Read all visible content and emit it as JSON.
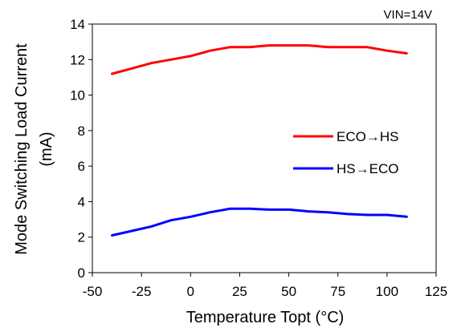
{
  "chart_data": {
    "type": "line",
    "annotation": "VIN=14V",
    "xlabel": "Temperature Topt (°C)",
    "ylabel": "Mode Switching Load Current",
    "ylabel_unit": "(mA)",
    "xlim": [
      -50,
      125
    ],
    "ylim": [
      0,
      14
    ],
    "x_ticks": [
      -50,
      -25,
      0,
      25,
      50,
      75,
      100,
      125
    ],
    "y_ticks": [
      0,
      2,
      4,
      6,
      8,
      10,
      12,
      14
    ],
    "grid": false,
    "legend_position": "right",
    "series": [
      {
        "name": "ECO→HS",
        "color": "#ff0000",
        "x": [
          -40,
          -30,
          -20,
          -10,
          0,
          10,
          20,
          30,
          40,
          50,
          60,
          70,
          80,
          90,
          100,
          110
        ],
        "y": [
          11.2,
          11.5,
          11.8,
          12.0,
          12.2,
          12.5,
          12.7,
          12.7,
          12.8,
          12.8,
          12.8,
          12.7,
          12.7,
          12.7,
          12.5,
          12.35
        ]
      },
      {
        "name": "HS→ECO",
        "color": "#0000ff",
        "x": [
          -40,
          -30,
          -20,
          -10,
          0,
          10,
          20,
          30,
          40,
          50,
          60,
          70,
          80,
          90,
          100,
          110
        ],
        "y": [
          2.1,
          2.35,
          2.6,
          2.95,
          3.15,
          3.4,
          3.6,
          3.6,
          3.55,
          3.55,
          3.45,
          3.4,
          3.3,
          3.25,
          3.25,
          3.15
        ]
      }
    ]
  }
}
